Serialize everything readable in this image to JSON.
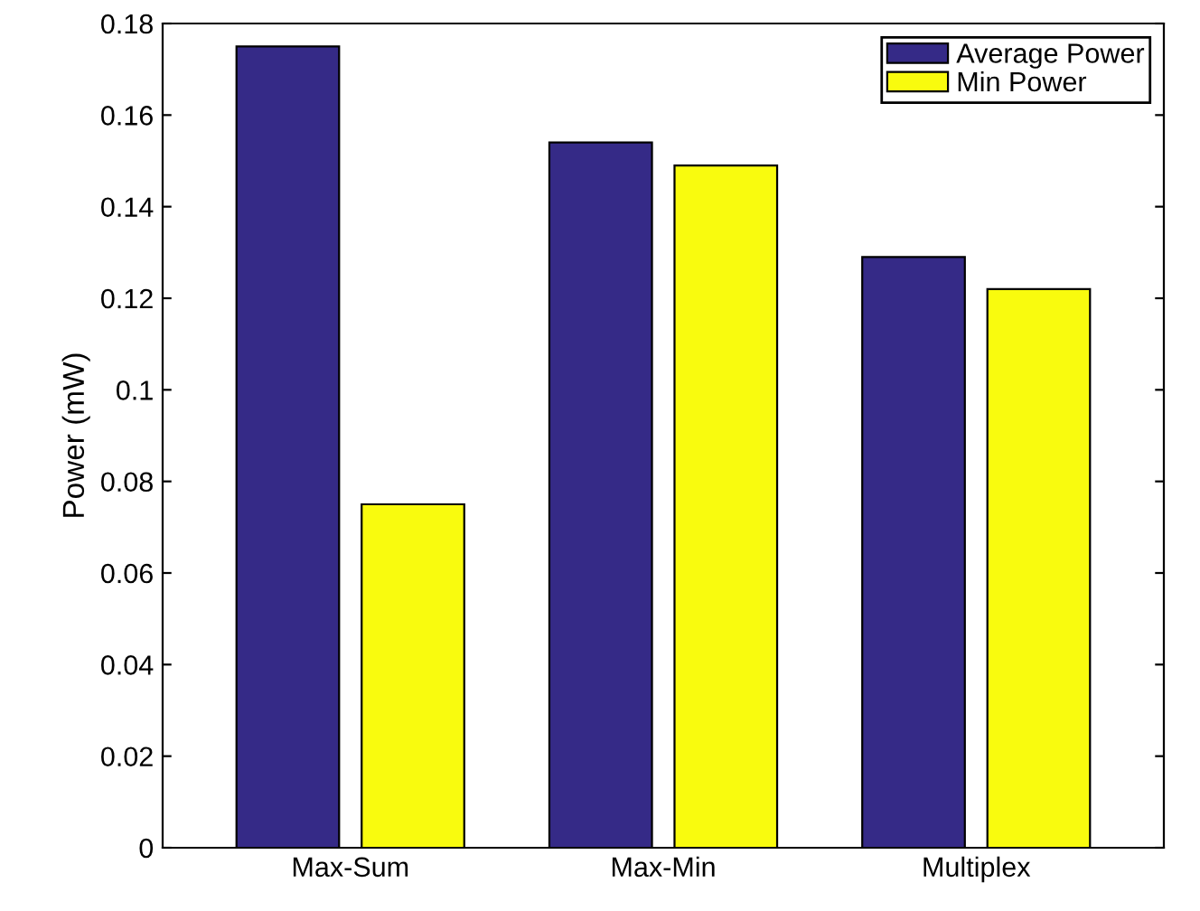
{
  "chart_data": {
    "type": "bar",
    "ylabel": "Power (mW)",
    "categories": [
      "Max-Sum",
      "Max-Min",
      "Multiplex"
    ],
    "series": [
      {
        "name": "Average Power",
        "color": "#352a87",
        "values": [
          0.175,
          0.154,
          0.129
        ]
      },
      {
        "name": "Min Power",
        "color": "#f9fb0e",
        "values": [
          0.075,
          0.149,
          0.122
        ]
      }
    ],
    "ylim": [
      0,
      0.18
    ],
    "yticks": [
      0,
      {
        "value": 0.02,
        "label": "0.02"
      },
      {
        "value": 0.04,
        "label": "0.04"
      },
      {
        "value": 0.06,
        "label": "0.06"
      },
      {
        "value": 0.08,
        "label": "0.08"
      },
      {
        "value": 0.1,
        "label": "0.1"
      },
      {
        "value": 0.12,
        "label": "0.12"
      },
      {
        "value": 0.14,
        "label": "0.14"
      },
      {
        "value": 0.16,
        "label": "0.16"
      },
      {
        "value": 0.18,
        "label": "0.18"
      }
    ],
    "grid": false,
    "legend": "top right"
  }
}
